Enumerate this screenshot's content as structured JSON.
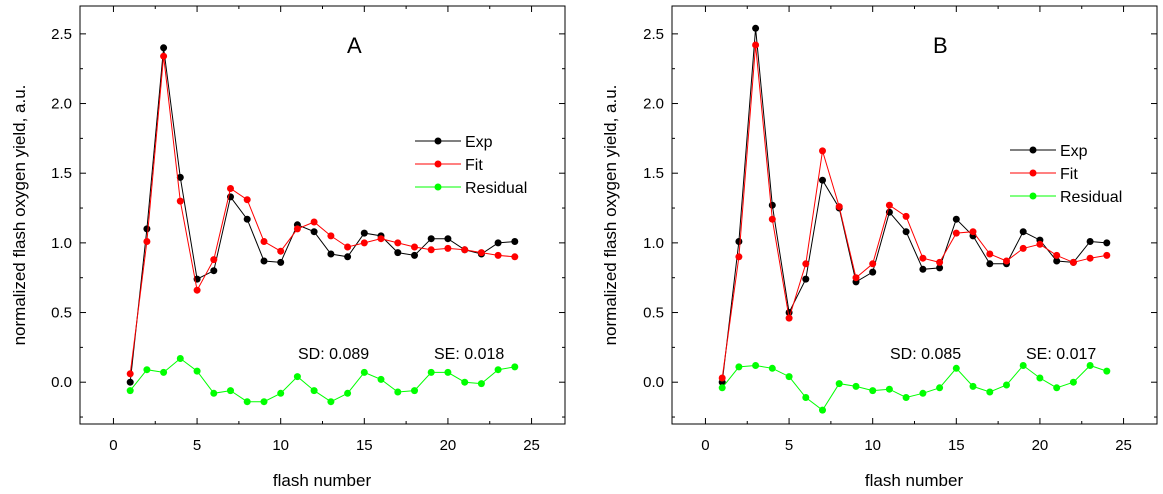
{
  "chart_data": [
    {
      "type": "line",
      "panel_label": "A",
      "xlabel": "flash number",
      "ylabel": "normalized flash oxygen yield, a.u.",
      "xlim": [
        -2,
        27
      ],
      "ylim": [
        -0.3,
        2.7
      ],
      "xticks": [
        0,
        5,
        10,
        15,
        20,
        25
      ],
      "yticks": [
        0.0,
        0.5,
        1.0,
        1.5,
        2.0,
        2.5
      ],
      "xtick_labels": [
        "0",
        "5",
        "10",
        "15",
        "20",
        "25"
      ],
      "ytick_labels": [
        "0.0",
        "0.5",
        "1.0",
        "1.5",
        "2.0",
        "2.5"
      ],
      "grid": false,
      "legend_position": "top-right",
      "x": [
        1,
        2,
        3,
        4,
        5,
        6,
        7,
        8,
        9,
        10,
        11,
        12,
        13,
        14,
        15,
        16,
        17,
        18,
        19,
        20,
        21,
        22,
        23,
        24
      ],
      "series": [
        {
          "name": "Exp",
          "color": "#000000",
          "values": [
            0.0,
            1.1,
            2.4,
            1.47,
            0.74,
            0.8,
            1.33,
            1.17,
            0.87,
            0.86,
            1.13,
            1.08,
            0.92,
            0.9,
            1.07,
            1.05,
            0.93,
            0.91,
            1.03,
            1.03,
            0.95,
            0.92,
            1.0,
            1.01
          ]
        },
        {
          "name": "Fit",
          "color": "#ff0000",
          "values": [
            0.06,
            1.01,
            2.34,
            1.3,
            0.66,
            0.88,
            1.39,
            1.31,
            1.01,
            0.94,
            1.1,
            1.15,
            1.05,
            0.97,
            1.0,
            1.03,
            1.0,
            0.97,
            0.95,
            0.96,
            0.95,
            0.93,
            0.91,
            0.9
          ]
        },
        {
          "name": "Residual",
          "color": "#00ff00",
          "values": [
            -0.06,
            0.09,
            0.07,
            0.17,
            0.08,
            -0.08,
            -0.06,
            -0.14,
            -0.14,
            -0.08,
            0.04,
            -0.06,
            -0.14,
            -0.08,
            0.07,
            0.02,
            -0.07,
            -0.06,
            0.07,
            0.07,
            0.0,
            -0.01,
            0.09,
            0.11
          ]
        }
      ],
      "annotations": {
        "sd": "SD: 0.089",
        "se": "SE: 0.018"
      }
    },
    {
      "type": "line",
      "panel_label": "B",
      "xlabel": "flash number",
      "ylabel": "normalized flash oxygen yield, a.u.",
      "xlim": [
        -2,
        27
      ],
      "ylim": [
        -0.3,
        2.7
      ],
      "xticks": [
        0,
        5,
        10,
        15,
        20,
        25
      ],
      "yticks": [
        0.0,
        0.5,
        1.0,
        1.5,
        2.0,
        2.5
      ],
      "xtick_labels": [
        "0",
        "5",
        "10",
        "15",
        "20",
        "25"
      ],
      "ytick_labels": [
        "0.0",
        "0.5",
        "1.0",
        "1.5",
        "2.0",
        "2.5"
      ],
      "grid": false,
      "legend_position": "top-right",
      "x": [
        1,
        2,
        3,
        4,
        5,
        6,
        7,
        8,
        9,
        10,
        11,
        12,
        13,
        14,
        15,
        16,
        17,
        18,
        19,
        20,
        21,
        22,
        23,
        24
      ],
      "series": [
        {
          "name": "Exp",
          "color": "#000000",
          "values": [
            0.0,
            1.01,
            2.54,
            1.27,
            0.5,
            0.74,
            1.45,
            1.25,
            0.72,
            0.79,
            1.22,
            1.08,
            0.81,
            0.82,
            1.17,
            1.05,
            0.85,
            0.85,
            1.08,
            1.02,
            0.87,
            0.86,
            1.01,
            1.0
          ]
        },
        {
          "name": "Fit",
          "color": "#ff0000",
          "values": [
            0.03,
            0.9,
            2.42,
            1.17,
            0.46,
            0.85,
            1.66,
            1.26,
            0.75,
            0.85,
            1.27,
            1.19,
            0.89,
            0.86,
            1.07,
            1.08,
            0.92,
            0.87,
            0.96,
            0.99,
            0.91,
            0.86,
            0.89,
            0.91
          ]
        },
        {
          "name": "Residual",
          "color": "#00ff00",
          "values": [
            -0.04,
            0.11,
            0.12,
            0.1,
            0.04,
            -0.11,
            -0.2,
            -0.01,
            -0.03,
            -0.06,
            -0.05,
            -0.11,
            -0.08,
            -0.04,
            0.1,
            -0.03,
            -0.07,
            -0.02,
            0.12,
            0.03,
            -0.04,
            0.0,
            0.12,
            0.08
          ]
        }
      ],
      "annotations": {
        "sd": "SD: 0.085",
        "se": "SE: 0.017"
      }
    }
  ]
}
